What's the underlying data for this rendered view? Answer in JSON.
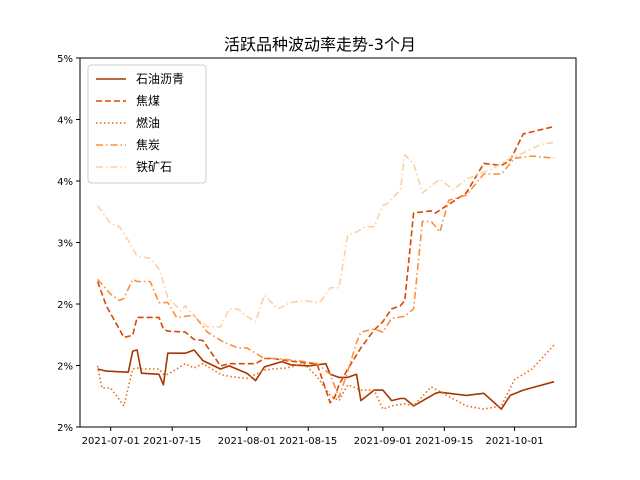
{
  "chart_data": {
    "type": "line",
    "title": "活跃品种波动率走势-3个月",
    "xlabel": "",
    "ylabel": "",
    "x_tick_labels": [
      "2021-07-01",
      "2021-07-15",
      "2021-08-01",
      "2021-08-15",
      "2021-09-01",
      "2021-09-15",
      "2021-10-01"
    ],
    "y_tick_labels": [
      "2%",
      "2%",
      "2%",
      "3%",
      "4%",
      "4%",
      "5%"
    ],
    "ylim": [
      0.015,
      0.05
    ],
    "x_range": [
      "2021-06-24",
      "2021-10-15"
    ],
    "grid": false,
    "legend_position": "upper-left",
    "series": [
      {
        "name": "石油沥青",
        "color": "#a63603",
        "dash": "solid",
        "x": [
          "2021-06-28",
          "2021-06-30",
          "2021-07-05",
          "2021-07-06",
          "2021-07-07",
          "2021-07-08",
          "2021-07-12",
          "2021-07-13",
          "2021-07-14",
          "2021-07-18",
          "2021-07-20",
          "2021-07-22",
          "2021-07-26",
          "2021-07-28",
          "2021-08-01",
          "2021-08-03",
          "2021-08-05",
          "2021-08-09",
          "2021-08-11",
          "2021-08-15",
          "2021-08-19",
          "2021-08-20",
          "2021-08-22",
          "2021-08-24",
          "2021-08-26",
          "2021-08-27",
          "2021-08-30",
          "2021-09-01",
          "2021-09-03",
          "2021-09-05",
          "2021-09-06",
          "2021-09-08",
          "2021-09-13",
          "2021-09-14",
          "2021-09-20",
          "2021-09-24",
          "2021-09-28",
          "2021-09-30",
          "2021-10-03",
          "2021-10-10"
        ],
        "y": [
          0.0205,
          0.0203,
          0.0202,
          0.0222,
          0.0223,
          0.0201,
          0.02,
          0.019,
          0.022,
          0.022,
          0.0223,
          0.0213,
          0.0205,
          0.0208,
          0.0201,
          0.0194,
          0.0207,
          0.0212,
          0.0209,
          0.0208,
          0.021,
          0.02,
          0.0197,
          0.0197,
          0.02,
          0.0175,
          0.0185,
          0.0185,
          0.0175,
          0.0177,
          0.0177,
          0.017,
          0.0182,
          0.0183,
          0.018,
          0.0182,
          0.0167,
          0.018,
          0.0185,
          0.0193
        ]
      },
      {
        "name": "焦煤",
        "color": "#d94801",
        "dash": "dashed",
        "x": [
          "2021-06-28",
          "2021-06-30",
          "2021-07-04",
          "2021-07-06",
          "2021-07-07",
          "2021-07-08",
          "2021-07-12",
          "2021-07-13",
          "2021-07-14",
          "2021-07-18",
          "2021-07-20",
          "2021-07-22",
          "2021-07-26",
          "2021-07-28",
          "2021-08-01",
          "2021-08-03",
          "2021-08-05",
          "2021-08-07",
          "2021-08-10",
          "2021-08-14",
          "2021-08-17",
          "2021-08-20",
          "2021-08-21",
          "2021-08-22",
          "2021-08-24",
          "2021-08-27",
          "2021-08-30",
          "2021-09-01",
          "2021-09-03",
          "2021-09-05",
          "2021-09-06",
          "2021-09-08",
          "2021-09-12",
          "2021-09-13",
          "2021-09-20",
          "2021-09-24",
          "2021-09-28",
          "2021-09-30",
          "2021-10-03",
          "2021-10-07",
          "2021-10-10"
        ],
        "y": [
          0.0288,
          0.0265,
          0.0235,
          0.0237,
          0.0254,
          0.0254,
          0.0254,
          0.0243,
          0.0241,
          0.024,
          0.0233,
          0.0232,
          0.0208,
          0.021,
          0.021,
          0.021,
          0.0215,
          0.0215,
          0.0213,
          0.0211,
          0.021,
          0.0173,
          0.0178,
          0.019,
          0.0205,
          0.0225,
          0.0242,
          0.025,
          0.0262,
          0.0265,
          0.027,
          0.0353,
          0.0355,
          0.0353,
          0.0372,
          0.04,
          0.0398,
          0.0403,
          0.0428,
          0.0432,
          0.0435
        ]
      },
      {
        "name": "燃油",
        "color": "#f16913",
        "dash": "dotted",
        "x": [
          "2021-06-28",
          "2021-06-29",
          "2021-07-01",
          "2021-07-04",
          "2021-07-06",
          "2021-07-07",
          "2021-07-08",
          "2021-07-12",
          "2021-07-13",
          "2021-07-14",
          "2021-07-18",
          "2021-07-20",
          "2021-07-22",
          "2021-07-26",
          "2021-07-28",
          "2021-08-01",
          "2021-08-03",
          "2021-08-05",
          "2021-08-07",
          "2021-08-10",
          "2021-08-14",
          "2021-08-17",
          "2021-08-20",
          "2021-08-22",
          "2021-08-24",
          "2021-08-27",
          "2021-08-30",
          "2021-09-01",
          "2021-09-03",
          "2021-09-06",
          "2021-09-08",
          "2021-09-12",
          "2021-09-20",
          "2021-09-24",
          "2021-09-28",
          "2021-10-01",
          "2021-10-05",
          "2021-10-10"
        ],
        "y": [
          0.0208,
          0.0187,
          0.0187,
          0.017,
          0.0205,
          0.0206,
          0.0205,
          0.0205,
          0.02,
          0.02,
          0.021,
          0.0206,
          0.021,
          0.02,
          0.0198,
          0.0196,
          0.02,
          0.0204,
          0.0205,
          0.0206,
          0.021,
          0.0198,
          0.018,
          0.0175,
          0.019,
          0.0185,
          0.0185,
          0.0167,
          0.017,
          0.0172,
          0.017,
          0.0188,
          0.017,
          0.0167,
          0.017,
          0.0195,
          0.0205,
          0.0228
        ]
      },
      {
        "name": "焦炭",
        "color": "#fd8d3c",
        "dash": "dashdot",
        "x": [
          "2021-06-28",
          "2021-07-01",
          "2021-07-03",
          "2021-07-04",
          "2021-07-06",
          "2021-07-07",
          "2021-07-10",
          "2021-07-12",
          "2021-07-14",
          "2021-07-16",
          "2021-07-18",
          "2021-07-20",
          "2021-07-23",
          "2021-07-27",
          "2021-07-30",
          "2021-08-01",
          "2021-08-03",
          "2021-08-05",
          "2021-08-08",
          "2021-08-12",
          "2021-08-14",
          "2021-08-17",
          "2021-08-20",
          "2021-08-22",
          "2021-08-24",
          "2021-08-26",
          "2021-08-27",
          "2021-08-30",
          "2021-09-01",
          "2021-09-03",
          "2021-09-06",
          "2021-09-08",
          "2021-09-10",
          "2021-09-12",
          "2021-09-14",
          "2021-09-16",
          "2021-09-20",
          "2021-09-24",
          "2021-09-28",
          "2021-10-01",
          "2021-10-05",
          "2021-10-10"
        ],
        "y": [
          0.029,
          0.0276,
          0.027,
          0.0272,
          0.029,
          0.0288,
          0.0288,
          0.0268,
          0.0268,
          0.0254,
          0.0255,
          0.0256,
          0.024,
          0.023,
          0.0225,
          0.0225,
          0.022,
          0.0215,
          0.0215,
          0.0213,
          0.0212,
          0.021,
          0.02,
          0.0178,
          0.0203,
          0.023,
          0.024,
          0.0243,
          0.024,
          0.0253,
          0.0255,
          0.0262,
          0.0345,
          0.0345,
          0.0335,
          0.0365,
          0.037,
          0.039,
          0.039,
          0.0405,
          0.0407,
          0.0405
        ]
      },
      {
        "name": "铁矿石",
        "color": "#fdd0a2",
        "dash": "dashdot",
        "x": [
          "2021-06-28",
          "2021-07-01",
          "2021-07-03",
          "2021-07-05",
          "2021-07-07",
          "2021-07-10",
          "2021-07-12",
          "2021-07-14",
          "2021-07-17",
          "2021-07-18",
          "2021-07-20",
          "2021-07-23",
          "2021-07-26",
          "2021-07-28",
          "2021-07-30",
          "2021-08-01",
          "2021-08-03",
          "2021-08-05",
          "2021-08-08",
          "2021-08-11",
          "2021-08-14",
          "2021-08-17",
          "2021-08-18",
          "2021-08-20",
          "2021-08-22",
          "2021-08-24",
          "2021-08-26",
          "2021-08-28",
          "2021-08-30",
          "2021-09-01",
          "2021-09-02",
          "2021-09-05",
          "2021-09-06",
          "2021-09-08",
          "2021-09-10",
          "2021-09-14",
          "2021-09-17",
          "2021-09-20",
          "2021-09-23",
          "2021-09-26",
          "2021-09-30",
          "2021-10-03",
          "2021-10-07",
          "2021-10-10"
        ],
        "y": [
          0.036,
          0.0343,
          0.034,
          0.0327,
          0.0312,
          0.031,
          0.03,
          0.0273,
          0.026,
          0.0265,
          0.0255,
          0.0245,
          0.0245,
          0.0262,
          0.0262,
          0.0255,
          0.025,
          0.0275,
          0.0262,
          0.0268,
          0.027,
          0.0268,
          0.027,
          0.0282,
          0.0282,
          0.0332,
          0.0335,
          0.034,
          0.034,
          0.036,
          0.0362,
          0.0375,
          0.0408,
          0.04,
          0.0372,
          0.0385,
          0.0375,
          0.0385,
          0.039,
          0.0395,
          0.0405,
          0.041,
          0.0418,
          0.042
        ]
      }
    ]
  }
}
